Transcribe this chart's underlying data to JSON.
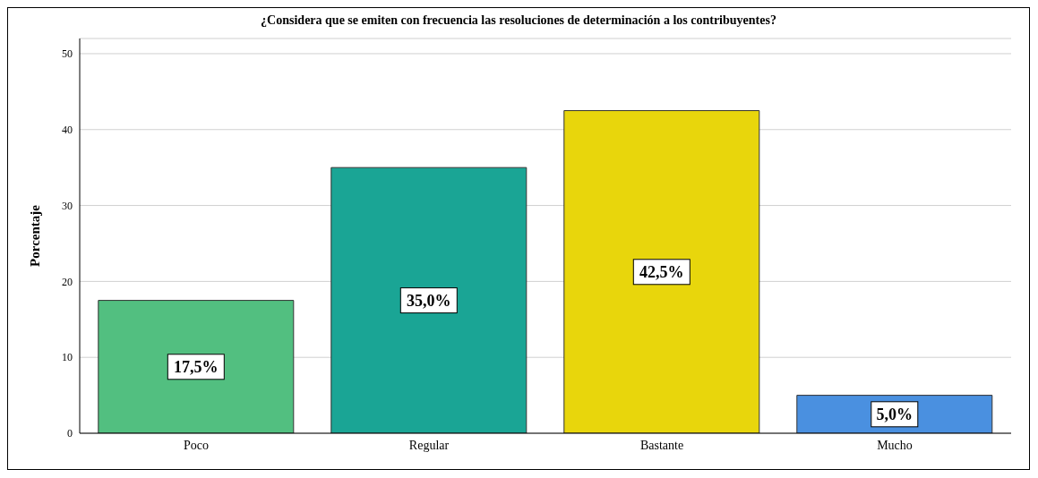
{
  "chart_data": {
    "type": "bar",
    "title": "¿Considera que se emiten con frecuencia las resoluciones de determinación a los contribuyentes?",
    "ylabel": "Porcentaje",
    "categories": [
      "Poco",
      "Regular",
      "Bastante",
      "Mucho"
    ],
    "values": [
      17.5,
      35.0,
      42.5,
      5.0
    ],
    "colors": [
      "#52bf80",
      "#1aa595",
      "#e8d60c",
      "#4a90e0"
    ],
    "value_labels": [
      "17,5%",
      "35,0%",
      "42,5%",
      "5,0%"
    ],
    "ylim": [
      0,
      52
    ],
    "yticks": [
      0,
      10,
      20,
      30,
      40,
      50
    ],
    "grid": "y"
  }
}
